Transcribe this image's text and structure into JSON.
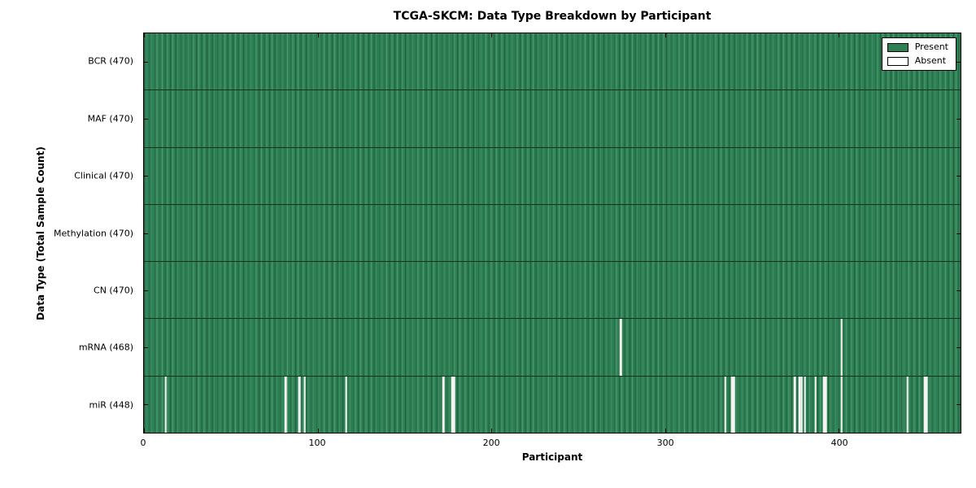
{
  "title": "TCGA-SKCM: Data Type Breakdown by Participant",
  "axes": {
    "x_label": "Participant",
    "y_label": "Data Type (Total Sample Count)",
    "x_ticks": [
      0,
      100,
      200,
      300,
      400
    ],
    "x_max": 470
  },
  "legend": {
    "items": [
      {
        "label": "Present",
        "color": "#2e8054"
      },
      {
        "label": "Absent",
        "color": "#ffffff"
      }
    ]
  },
  "colors": {
    "present": "#2e8054",
    "absent": "#f4f4f2",
    "row_separator": "#10331f",
    "plot_border": "#000000"
  },
  "chart_data": {
    "type": "heatmap",
    "title": "TCGA-SKCM: Data Type Breakdown by Participant",
    "xlabel": "Participant",
    "ylabel": "Data Type (Total Sample Count)",
    "x_range": [
      0,
      470
    ],
    "x_ticks": [
      0,
      100,
      200,
      300,
      400
    ],
    "legend_position": "upper right",
    "present_color": "#2e8054",
    "absent_color": "#ffffff",
    "rows": [
      {
        "label": "BCR",
        "total": 470,
        "display": "BCR (470)",
        "absent_participants": []
      },
      {
        "label": "MAF",
        "total": 470,
        "display": "MAF (470)",
        "absent_participants": []
      },
      {
        "label": "Clinical",
        "total": 470,
        "display": "Clinical (470)",
        "absent_participants": []
      },
      {
        "label": "Methylation",
        "total": 470,
        "display": "Methylation (470)",
        "absent_participants": []
      },
      {
        "label": "CN",
        "total": 470,
        "display": "CN (470)",
        "absent_participants": []
      },
      {
        "label": "mRNA",
        "total": 468,
        "display": "mRNA (468)",
        "absent_participants": [
          274,
          401
        ]
      },
      {
        "label": "miR",
        "total": 448,
        "display": "miR (448)",
        "absent_participants": [
          12,
          81,
          89,
          92,
          116,
          172,
          177,
          178,
          334,
          338,
          339,
          374,
          377,
          378,
          380,
          386,
          391,
          392,
          401,
          439,
          449,
          450
        ]
      }
    ]
  }
}
